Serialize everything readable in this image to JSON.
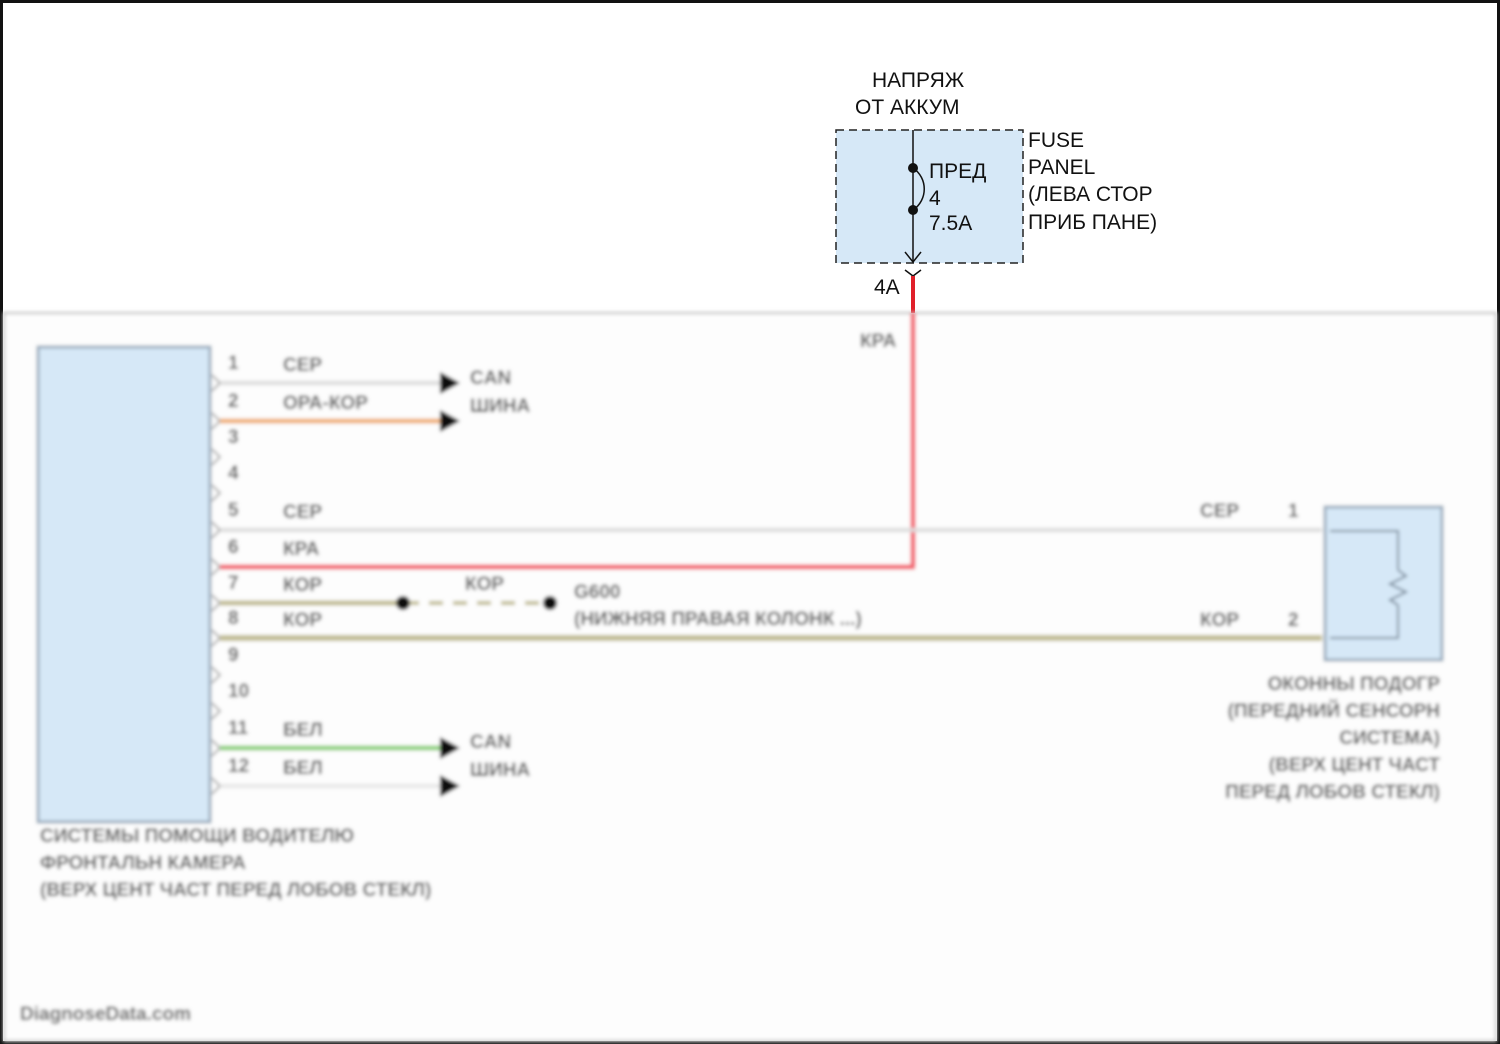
{
  "supply": {
    "line1": "НАПРЯЖ",
    "line2": "ОТ АККУМ"
  },
  "fuse_panel": {
    "label_lines": [
      "FUSE",
      "PANEL",
      "(ЛЕВА СТОР",
      "ПРИБ ПАНЕ)"
    ],
    "fuse_lines": [
      "ПРЕД",
      "4",
      "7.5A"
    ],
    "connector": "4A",
    "fill": "#d6e8f7"
  },
  "wires": {
    "feed_color_label": "КРА",
    "pins": [
      {
        "num": "1",
        "color_label": "СЕР",
        "color": "#dcdcdc"
      },
      {
        "num": "2",
        "color_label": "ОРА-КОР",
        "color": "#f0b27a"
      },
      {
        "num": "3",
        "color_label": "",
        "color": ""
      },
      {
        "num": "4",
        "color_label": "",
        "color": ""
      },
      {
        "num": "5",
        "color_label": "СЕР",
        "color": "#dcdcdc"
      },
      {
        "num": "6",
        "color_label": "КРА",
        "color": "#f26470"
      },
      {
        "num": "7",
        "color_label": "КОР",
        "color": "#c2bd95"
      },
      {
        "num": "8",
        "color_label": "КОР",
        "color": "#c2bd95"
      },
      {
        "num": "9",
        "color_label": "",
        "color": ""
      },
      {
        "num": "10",
        "color_label": "",
        "color": ""
      },
      {
        "num": "11",
        "color_label": "БЕЛ",
        "color": "#8fd17f"
      },
      {
        "num": "12",
        "color_label": "БЕЛ",
        "color": "#e6e6e6"
      }
    ],
    "can_upper": [
      "CAN",
      "ШИНА"
    ],
    "can_lower": [
      "CAN",
      "ШИНА"
    ],
    "ground": {
      "wire_label": "КОР",
      "id": "G600",
      "location": "(НИЖНЯЯ ПРАВАЯ КОЛОНК ...)"
    }
  },
  "left_module": {
    "label_lines": [
      "СИСТЕМЫ ПОМОЩИ ВОДИТЕЛЮ",
      "ФРОНТАЛЬН КАМЕРА",
      "(ВЕРХ ЦЕНТ ЧАСТ ПЕРЕД ЛОБОВ СТЕКЛ)"
    ]
  },
  "right_module": {
    "pin1": {
      "num": "1",
      "color_label": "СЕР"
    },
    "pin2": {
      "num": "2",
      "color_label": "КОР"
    },
    "label_lines": [
      "ОКОННЫ ПОДОГР",
      "(ПЕРЕДНИЙ СЕНСОРН",
      "СИСТЕМА)",
      "(ВЕРХ ЦЕНТ ЧАСТ",
      "ПЕРЕД ЛОБОВ СТЕКЛ)"
    ]
  },
  "watermark": "DiagnoseData.com"
}
